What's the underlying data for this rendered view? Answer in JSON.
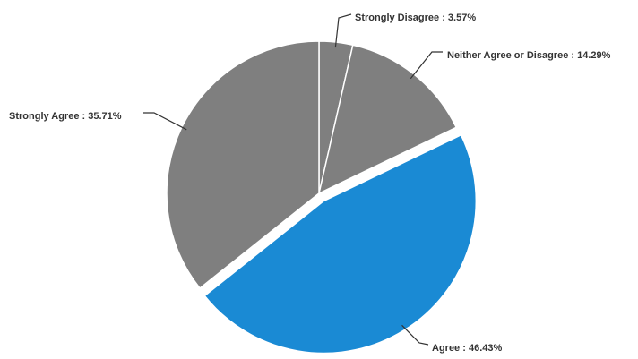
{
  "chart_data": {
    "type": "pie",
    "title": "",
    "slices": [
      {
        "label": "Strongly Disagree : 3.57%",
        "name": "Strongly Disagree",
        "value": 3.57,
        "color": "#7f7f7f",
        "exploded": false
      },
      {
        "label": "Neither Agree or Disagree : 14.29%",
        "name": "Neither Agree or Disagree",
        "value": 14.29,
        "color": "#7f7f7f",
        "exploded": false
      },
      {
        "label": "Agree : 46.43%",
        "name": "Agree",
        "value": 46.43,
        "color": "#1a8ad4",
        "exploded": true
      },
      {
        "label": "Strongly Agree : 35.71%",
        "name": "Strongly Agree",
        "value": 35.71,
        "color": "#7f7f7f",
        "exploded": false
      }
    ],
    "start_angle": "12 o'clock",
    "direction": "clockwise",
    "slice_border_color": "#ffffff",
    "leader_line_color": "#333333"
  }
}
